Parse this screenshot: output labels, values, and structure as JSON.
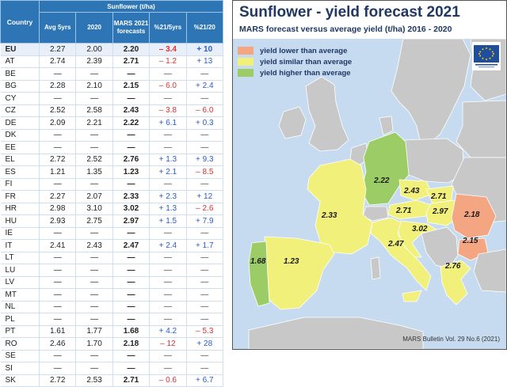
{
  "table": {
    "header": {
      "country": "Country",
      "group": "Sunflower (t/ha)",
      "cols": [
        "Avg 5yrs",
        "2020",
        "MARS 2021 forecasts",
        "%21/5yrs",
        "%21/20"
      ]
    },
    "rows": [
      {
        "c": "EU",
        "avg": "2.27",
        "y20": "2.00",
        "mars": "2.20",
        "p5": "– 3.4",
        "p20": "+ 10",
        "s5": "neg",
        "s20": "pos"
      },
      {
        "c": "AT",
        "avg": "2.74",
        "y20": "2.39",
        "mars": "2.71",
        "p5": "– 1.2",
        "p20": "+ 13",
        "s5": "neg",
        "s20": "pos"
      },
      {
        "c": "BE",
        "avg": "—",
        "y20": "—",
        "mars": "—",
        "p5": "—",
        "p20": "—",
        "s5": "dash",
        "s20": "dash"
      },
      {
        "c": "BG",
        "avg": "2.28",
        "y20": "2.10",
        "mars": "2.15",
        "p5": "– 6.0",
        "p20": "+ 2.4",
        "s5": "neg",
        "s20": "pos"
      },
      {
        "c": "CY",
        "avg": "—",
        "y20": "—",
        "mars": "—",
        "p5": "—",
        "p20": "—",
        "s5": "dash",
        "s20": "dash"
      },
      {
        "c": "CZ",
        "avg": "2.52",
        "y20": "2.58",
        "mars": "2.43",
        "p5": "– 3.8",
        "p20": "– 6.0",
        "s5": "neg",
        "s20": "neg"
      },
      {
        "c": "DE",
        "avg": "2.09",
        "y20": "2.21",
        "mars": "2.22",
        "p5": "+ 6.1",
        "p20": "+ 0.3",
        "s5": "pos",
        "s20": "pos"
      },
      {
        "c": "DK",
        "avg": "—",
        "y20": "—",
        "mars": "—",
        "p5": "—",
        "p20": "—",
        "s5": "dash",
        "s20": "dash"
      },
      {
        "c": "EE",
        "avg": "—",
        "y20": "—",
        "mars": "—",
        "p5": "—",
        "p20": "—",
        "s5": "dash",
        "s20": "dash"
      },
      {
        "c": "EL",
        "avg": "2.72",
        "y20": "2.52",
        "mars": "2.76",
        "p5": "+ 1.3",
        "p20": "+ 9.3",
        "s5": "pos",
        "s20": "pos"
      },
      {
        "c": "ES",
        "avg": "1.21",
        "y20": "1.35",
        "mars": "1.23",
        "p5": "+ 2.1",
        "p20": "– 8.5",
        "s5": "pos",
        "s20": "neg"
      },
      {
        "c": "FI",
        "avg": "—",
        "y20": "—",
        "mars": "—",
        "p5": "—",
        "p20": "—",
        "s5": "dash",
        "s20": "dash"
      },
      {
        "c": "FR",
        "avg": "2.27",
        "y20": "2.07",
        "mars": "2.33",
        "p5": "+ 2.3",
        "p20": "+ 12",
        "s5": "pos",
        "s20": "pos"
      },
      {
        "c": "HR",
        "avg": "2.98",
        "y20": "3.10",
        "mars": "3.02",
        "p5": "+ 1.3",
        "p20": "– 2.6",
        "s5": "pos",
        "s20": "neg"
      },
      {
        "c": "HU",
        "avg": "2.93",
        "y20": "2.75",
        "mars": "2.97",
        "p5": "+ 1.5",
        "p20": "+ 7.9",
        "s5": "pos",
        "s20": "pos"
      },
      {
        "c": "IE",
        "avg": "—",
        "y20": "—",
        "mars": "—",
        "p5": "—",
        "p20": "—",
        "s5": "dash",
        "s20": "dash"
      },
      {
        "c": "IT",
        "avg": "2.41",
        "y20": "2.43",
        "mars": "2.47",
        "p5": "+ 2.4",
        "p20": "+ 1.7",
        "s5": "pos",
        "s20": "pos"
      },
      {
        "c": "LT",
        "avg": "—",
        "y20": "—",
        "mars": "—",
        "p5": "—",
        "p20": "—",
        "s5": "dash",
        "s20": "dash"
      },
      {
        "c": "LU",
        "avg": "—",
        "y20": "—",
        "mars": "—",
        "p5": "—",
        "p20": "—",
        "s5": "dash",
        "s20": "dash"
      },
      {
        "c": "LV",
        "avg": "—",
        "y20": "—",
        "mars": "—",
        "p5": "—",
        "p20": "—",
        "s5": "dash",
        "s20": "dash"
      },
      {
        "c": "MT",
        "avg": "—",
        "y20": "—",
        "mars": "—",
        "p5": "—",
        "p20": "—",
        "s5": "dash",
        "s20": "dash"
      },
      {
        "c": "NL",
        "avg": "—",
        "y20": "—",
        "mars": "—",
        "p5": "—",
        "p20": "—",
        "s5": "dash",
        "s20": "dash"
      },
      {
        "c": "PL",
        "avg": "—",
        "y20": "—",
        "mars": "—",
        "p5": "—",
        "p20": "—",
        "s5": "dash",
        "s20": "dash"
      },
      {
        "c": "PT",
        "avg": "1.61",
        "y20": "1.77",
        "mars": "1.68",
        "p5": "+ 4.2",
        "p20": "– 5.3",
        "s5": "pos",
        "s20": "neg"
      },
      {
        "c": "RO",
        "avg": "2.46",
        "y20": "1.70",
        "mars": "2.18",
        "p5": "– 12",
        "p20": "+ 28",
        "s5": "neg",
        "s20": "pos"
      },
      {
        "c": "SE",
        "avg": "—",
        "y20": "—",
        "mars": "—",
        "p5": "—",
        "p20": "—",
        "s5": "dash",
        "s20": "dash"
      },
      {
        "c": "SI",
        "avg": "—",
        "y20": "—",
        "mars": "—",
        "p5": "—",
        "p20": "—",
        "s5": "dash",
        "s20": "dash"
      },
      {
        "c": "SK",
        "avg": "2.72",
        "y20": "2.53",
        "mars": "2.71",
        "p5": "– 0.6",
        "p20": "+ 6.7",
        "s5": "neg",
        "s20": "pos"
      }
    ]
  },
  "map": {
    "title": "Sunflower - yield forecast 2021",
    "subtitle": "MARS forecast versus average yield (t/ha) 2016 - 2020",
    "legend": [
      {
        "label": "yield lower than average",
        "color": "#f4a582"
      },
      {
        "label": "yield similar than average",
        "color": "#f1f07a"
      },
      {
        "label": "yield higher than average",
        "color": "#9ccc65"
      }
    ],
    "values": {
      "DE": "2.22",
      "CZ": "2.43",
      "SK": "2.71",
      "AT": "2.71",
      "HU": "2.97",
      "RO": "2.18",
      "BG": "2.15",
      "FR": "2.33",
      "HR": "3.02",
      "IT": "2.47",
      "PT": "1.68",
      "ES": "1.23",
      "EL": "2.76"
    },
    "bulletin": "MARS Bulletin Vol. 29 No.6 (2021)",
    "colors": {
      "sea": "#c6dbef",
      "land_gray": "#c8c8c8",
      "lower": "#f4a582",
      "similar": "#f1f07a",
      "higher": "#9ccc65",
      "eu_blue": "#1f4e9c",
      "eu_star": "#ffcc00"
    }
  }
}
